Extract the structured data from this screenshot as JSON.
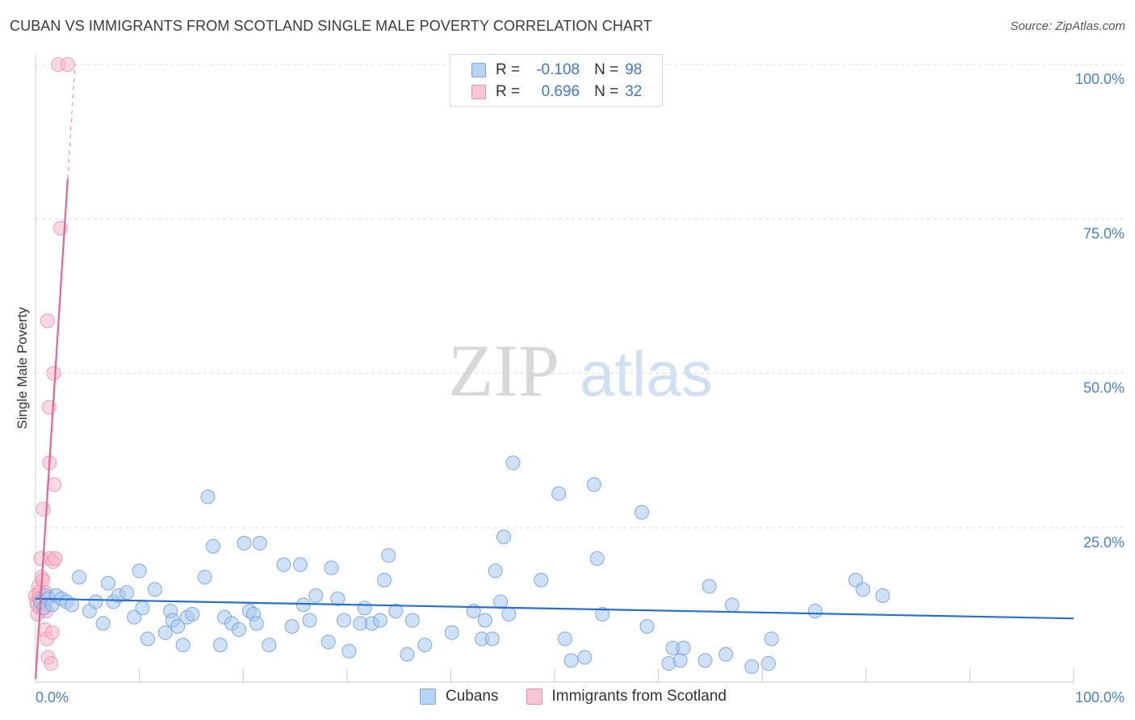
{
  "header": {
    "title": "CUBAN VS IMMIGRANTS FROM SCOTLAND SINGLE MALE POVERTY CORRELATION CHART",
    "source": "Source: ZipAtlas.com"
  },
  "watermark": {
    "zip": "ZIP",
    "atlas": "atlas"
  },
  "legend_top": {
    "rows": [
      {
        "r_label": "R =",
        "r_value": "-0.108",
        "n_label": "N =",
        "n_value": "98",
        "color": "#a8c8f0",
        "border": "#7aa7e0"
      },
      {
        "r_label": "R =",
        "r_value": "0.696",
        "n_label": "N =",
        "n_value": "32",
        "color": "#f7b8cc",
        "border": "#ec8fae"
      }
    ]
  },
  "legend_bottom": {
    "items": [
      {
        "label": "Cubans",
        "color": "#a8c8f0",
        "border": "#7aa7e0"
      },
      {
        "label": "Immigrants from Scotland",
        "color": "#f7b8cc",
        "border": "#ec8fae"
      }
    ]
  },
  "colors": {
    "cubans_fill": "#a8c8f0",
    "cubans_stroke": "#6f9fdc",
    "cubans_line": "#2a6fd0",
    "scotland_fill": "#f7b8cc",
    "scotland_stroke": "#ec8fae",
    "scotland_line": "#e2678f",
    "tick_text": "#4a7fd0",
    "grid": "#dcdcdc"
  },
  "chart_data": {
    "type": "scatter",
    "title": "CUBAN VS IMMIGRANTS FROM SCOTLAND SINGLE MALE POVERTY CORRELATION CHART",
    "xlabel": "",
    "ylabel": "Single Male Poverty",
    "xlim": [
      0,
      100
    ],
    "ylim": [
      0,
      100
    ],
    "x_tick_labels": [
      "0.0%",
      "100.0%"
    ],
    "y_tick_labels": [
      "100.0%",
      "75.0%",
      "50.0%",
      "25.0%"
    ],
    "y_ticks": [
      100,
      75,
      50,
      25
    ],
    "grid": true,
    "legend_position": "top-center",
    "series": [
      {
        "name": "Cubans",
        "points": [
          [
            0.5,
            13.0
          ],
          [
            0.8,
            12.0
          ],
          [
            1.0,
            14.0
          ],
          [
            1.2,
            13.5
          ],
          [
            1.6,
            12.5
          ],
          [
            2.0,
            14.0
          ],
          [
            2.5,
            13.5
          ],
          [
            3.0,
            13.0
          ],
          [
            3.5,
            12.5
          ],
          [
            4.2,
            17.0
          ],
          [
            5.2,
            11.5
          ],
          [
            5.8,
            13.0
          ],
          [
            6.5,
            9.5
          ],
          [
            7.0,
            16.0
          ],
          [
            7.5,
            13.0
          ],
          [
            8.0,
            14.0
          ],
          [
            8.8,
            14.5
          ],
          [
            9.5,
            10.5
          ],
          [
            10.0,
            18.0
          ],
          [
            10.3,
            12.0
          ],
          [
            10.8,
            7.0
          ],
          [
            11.5,
            15.0
          ],
          [
            12.5,
            8.0
          ],
          [
            13.0,
            11.5
          ],
          [
            13.2,
            10.0
          ],
          [
            13.7,
            9.0
          ],
          [
            14.2,
            6.0
          ],
          [
            14.6,
            10.5
          ],
          [
            15.1,
            11.0
          ],
          [
            16.3,
            17.0
          ],
          [
            16.6,
            30.0
          ],
          [
            17.1,
            22.0
          ],
          [
            17.8,
            6.0
          ],
          [
            18.2,
            10.5
          ],
          [
            18.9,
            9.5
          ],
          [
            19.6,
            8.5
          ],
          [
            20.1,
            22.5
          ],
          [
            20.6,
            11.5
          ],
          [
            21.0,
            11.0
          ],
          [
            21.3,
            9.5
          ],
          [
            21.6,
            22.5
          ],
          [
            22.5,
            6.0
          ],
          [
            23.9,
            19.0
          ],
          [
            24.7,
            9.0
          ],
          [
            25.5,
            19.0
          ],
          [
            25.8,
            12.5
          ],
          [
            26.4,
            10.0
          ],
          [
            27.0,
            14.0
          ],
          [
            28.2,
            6.5
          ],
          [
            28.5,
            18.5
          ],
          [
            29.1,
            13.5
          ],
          [
            29.7,
            10.0
          ],
          [
            30.2,
            5.0
          ],
          [
            31.3,
            9.5
          ],
          [
            31.7,
            12.0
          ],
          [
            32.4,
            9.5
          ],
          [
            33.2,
            10.0
          ],
          [
            33.6,
            16.5
          ],
          [
            34.0,
            20.5
          ],
          [
            34.7,
            11.5
          ],
          [
            35.8,
            4.5
          ],
          [
            36.3,
            10.0
          ],
          [
            37.5,
            6.0
          ],
          [
            40.1,
            8.0
          ],
          [
            42.2,
            11.5
          ],
          [
            43.0,
            7.0
          ],
          [
            43.3,
            10.0
          ],
          [
            44.0,
            7.0
          ],
          [
            44.3,
            18.0
          ],
          [
            44.8,
            13.0
          ],
          [
            45.1,
            23.5
          ],
          [
            45.6,
            11.0
          ],
          [
            46.0,
            35.5
          ],
          [
            48.7,
            16.5
          ],
          [
            50.4,
            30.5
          ],
          [
            51.0,
            7.0
          ],
          [
            51.6,
            3.5
          ],
          [
            52.9,
            4.0
          ],
          [
            53.8,
            32.0
          ],
          [
            54.1,
            20.0
          ],
          [
            54.6,
            11.0
          ],
          [
            58.4,
            27.5
          ],
          [
            58.9,
            9.0
          ],
          [
            61.0,
            3.0
          ],
          [
            61.4,
            5.5
          ],
          [
            62.1,
            3.5
          ],
          [
            62.4,
            5.5
          ],
          [
            64.5,
            3.5
          ],
          [
            64.9,
            15.5
          ],
          [
            66.5,
            4.5
          ],
          [
            67.1,
            12.5
          ],
          [
            69.0,
            2.5
          ],
          [
            70.6,
            3.0
          ],
          [
            70.9,
            7.0
          ],
          [
            75.1,
            11.5
          ],
          [
            79.0,
            16.5
          ],
          [
            79.7,
            15.0
          ],
          [
            81.6,
            14.0
          ]
        ],
        "trend": {
          "x": [
            0,
            100
          ],
          "y": [
            13.5,
            10.3
          ]
        }
      },
      {
        "name": "Immigrants from Scotland",
        "points": [
          [
            0.0,
            14.0
          ],
          [
            0.1,
            13.0
          ],
          [
            0.15,
            12.5
          ],
          [
            0.2,
            11.0
          ],
          [
            0.3,
            15.5
          ],
          [
            0.35,
            14.5
          ],
          [
            0.4,
            13.5
          ],
          [
            0.45,
            12.0
          ],
          [
            0.5,
            20.0
          ],
          [
            0.6,
            17.0
          ],
          [
            0.7,
            16.5
          ],
          [
            0.75,
            28.0
          ],
          [
            0.8,
            13.0
          ],
          [
            0.85,
            12.0
          ],
          [
            0.9,
            8.5
          ],
          [
            1.0,
            14.5
          ],
          [
            1.05,
            11.5
          ],
          [
            1.1,
            7.0
          ],
          [
            1.15,
            58.5
          ],
          [
            1.2,
            4.0
          ],
          [
            1.3,
            44.5
          ],
          [
            1.35,
            35.5
          ],
          [
            1.4,
            20.0
          ],
          [
            1.5,
            3.0
          ],
          [
            1.6,
            8.0
          ],
          [
            1.7,
            19.5
          ],
          [
            1.75,
            50.0
          ],
          [
            1.8,
            32.0
          ],
          [
            1.9,
            20.0
          ],
          [
            2.2,
            100.0
          ],
          [
            2.4,
            73.5
          ],
          [
            3.1,
            100.0
          ]
        ],
        "trend": {
          "x": [
            0,
            3.1
          ],
          "y": [
            0.5,
            81.5
          ]
        },
        "trend_extension": {
          "x": [
            3.1,
            3.8
          ],
          "y": [
            81.5,
            100
          ]
        }
      }
    ]
  }
}
